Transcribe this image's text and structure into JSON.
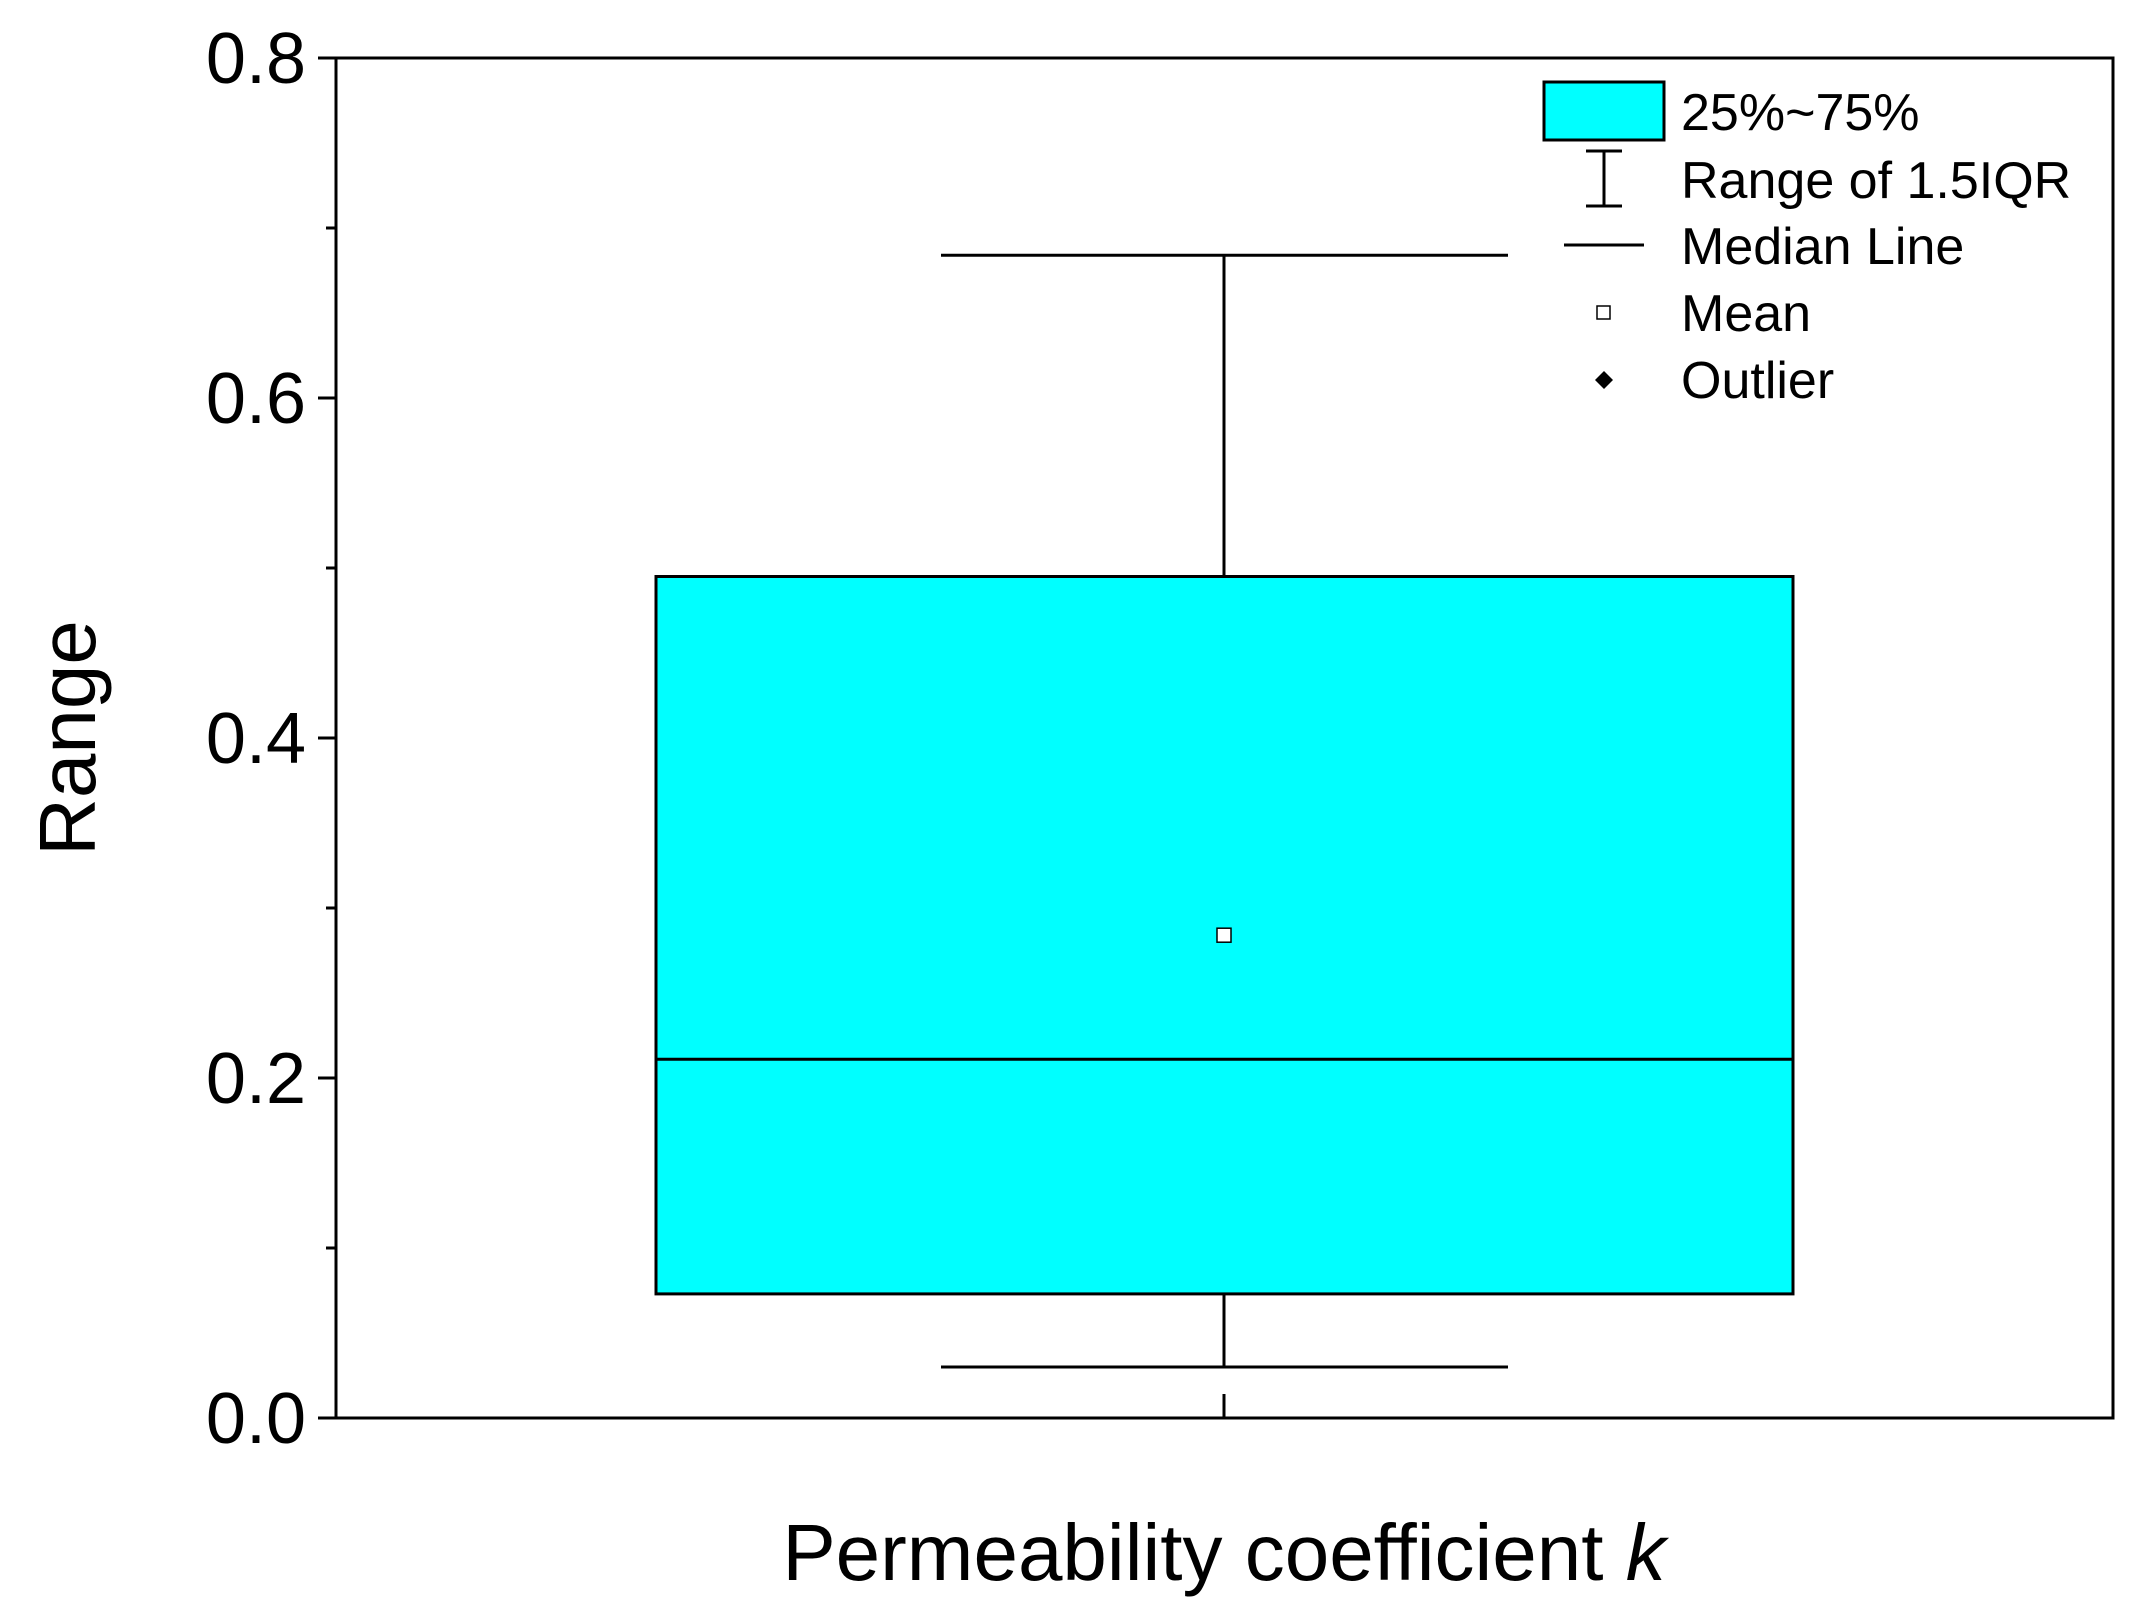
{
  "chart_data": {
    "type": "box",
    "ylabel": "Range",
    "xlabel": "Permeability coefficient",
    "xlabel_var": "k",
    "ylim": [
      0.0,
      0.8
    ],
    "yticks": [
      "0.0",
      "0.2",
      "0.4",
      "0.6",
      "0.8"
    ],
    "ytick_values": [
      0.0,
      0.2,
      0.4,
      0.6,
      0.8
    ],
    "y_minor_tick_values": [
      0.1,
      0.3,
      0.5,
      0.7
    ],
    "grid": false,
    "box": {
      "whisker_low": 0.03,
      "q1": 0.073,
      "median": 0.211,
      "mean": 0.284,
      "q3": 0.495,
      "whisker_high": 0.684,
      "outliers": []
    },
    "colors": {
      "box_fill": "#00FFFF",
      "stroke": "#000000"
    },
    "legend": {
      "placement": "top-right",
      "items": [
        {
          "key": "box",
          "label": "25%~75%"
        },
        {
          "key": "whisker",
          "label": "Range of 1.5IQR"
        },
        {
          "key": "median",
          "label": "Median Line"
        },
        {
          "key": "mean",
          "label": "Mean"
        },
        {
          "key": "outlier",
          "label": "Outlier"
        }
      ]
    }
  }
}
